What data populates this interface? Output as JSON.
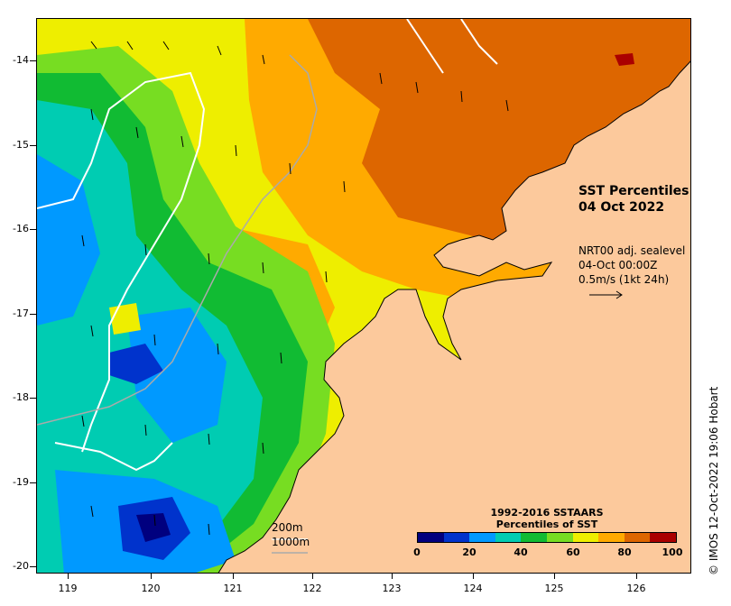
{
  "title": {
    "line1": "SST Percentiles",
    "line2": "04 Oct 2022"
  },
  "vector_info": {
    "line1": "NRT00 adj. sealevel",
    "line2": "04-Oct 00:00Z",
    "line3": "0.5m/s (1kt 24h)"
  },
  "scale": {
    "depth_200": "200m",
    "depth_1000": "1000m"
  },
  "colorbar": {
    "title_line1": "1992-2016 SSTAARS",
    "title_line2": "Percentiles of SST",
    "colors": [
      "#00007f",
      "#0033cc",
      "#0099ff",
      "#00ccb2",
      "#11bb33",
      "#77dd22",
      "#eeee00",
      "#ffaa00",
      "#dd6600",
      "#aa0000"
    ],
    "ticks": [
      "0",
      "20",
      "40",
      "60",
      "80",
      "100"
    ]
  },
  "axes": {
    "y_ticks": [
      "-14",
      "-15",
      "-16",
      "-17",
      "-18",
      "-19",
      "-20"
    ],
    "x_ticks": [
      "119",
      "120",
      "121",
      "122",
      "123",
      "124",
      "125",
      "126"
    ],
    "lon_range": [
      118.55,
      126.75
    ],
    "lat_range": [
      -13.55,
      -20.1
    ]
  },
  "credit": "© IMOS 12-Oct-2022 19:06 Hobart",
  "colors": {
    "land": "#fcc99c",
    "contour_200m": "#ffffff",
    "contour_1000m": "#aaaaaa"
  }
}
